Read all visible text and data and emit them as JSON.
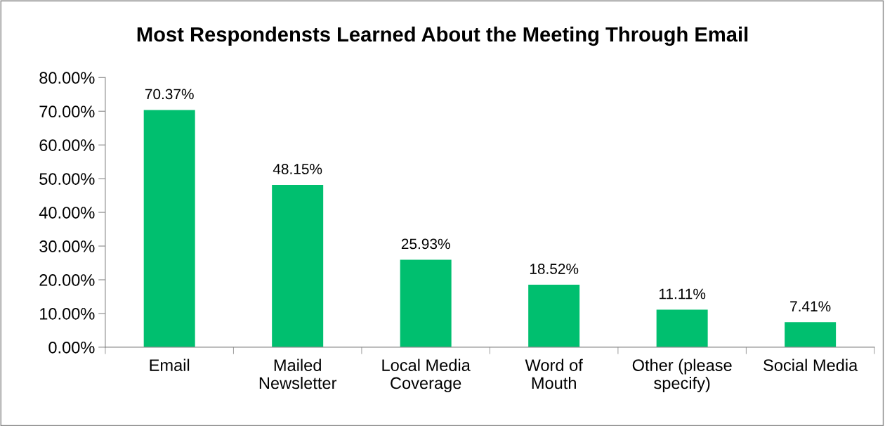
{
  "chart_data": {
    "type": "bar",
    "title": "Most Respondensts Learned About the Meeting Through Email",
    "categories": [
      "Email",
      "Mailed\nNewsletter",
      "Local Media\nCoverage",
      "Word of\nMouth",
      "Other (please\nspecify)",
      "Social Media"
    ],
    "values": [
      70.37,
      48.15,
      25.93,
      18.52,
      11.11,
      7.41
    ],
    "value_labels": [
      "70.37%",
      "48.15%",
      "25.93%",
      "18.52%",
      "11.11%",
      "7.41%"
    ],
    "color": "#00bf6f",
    "ylim": [
      0,
      80
    ],
    "yticks": [
      {
        "value": 0,
        "label": "0.00%"
      },
      {
        "value": 10,
        "label": "10.00%"
      },
      {
        "value": 20,
        "label": "20.00%"
      },
      {
        "value": 30,
        "label": "30.00%"
      },
      {
        "value": 40,
        "label": "40.00%"
      },
      {
        "value": 50,
        "label": "50.00%"
      },
      {
        "value": 60,
        "label": "60.00%"
      },
      {
        "value": 70,
        "label": "70.00%"
      },
      {
        "value": 80,
        "label": "80.00%"
      }
    ],
    "grid": false,
    "legend": false
  }
}
